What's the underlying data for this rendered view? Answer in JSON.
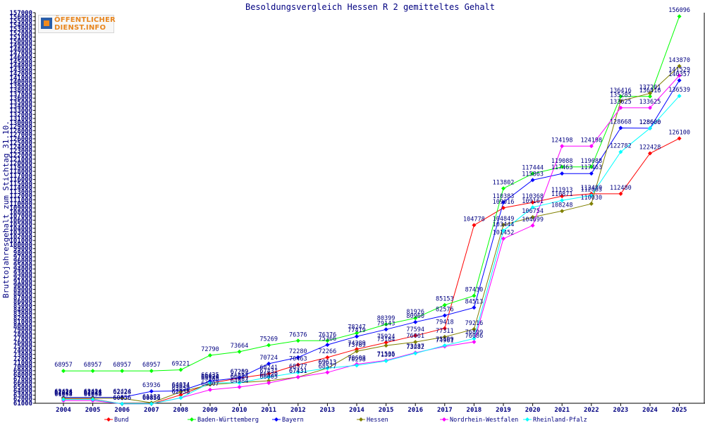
{
  "logo": {
    "line1": "ÖFFENTLICHER",
    "line2": "DIENST.INFO"
  },
  "chart_data": {
    "type": "line",
    "title": "Besoldungsvergleich Hessen R 2 gemitteltes Gehalt",
    "xlabel": "",
    "ylabel": "Bruttojahresgehalt zum Stichtag 31.10.",
    "ylim": [
      61000,
      157000
    ],
    "ytick_step": 1000,
    "grid": false,
    "legend_position": "bottom",
    "categories": [
      "2004",
      "2005",
      "2006",
      "2007",
      "2008",
      "2009",
      "2010",
      "2011",
      "2012",
      "2013",
      "2014",
      "2015",
      "2016",
      "2017",
      "2018",
      "2019",
      "2020",
      "2021",
      "2022",
      "2023",
      "2024",
      "2025"
    ],
    "series": [
      {
        "name": "Bund",
        "color": "#ff0000",
        "values": [
          62023,
          62023,
          60856,
          60856,
          63058,
          65926,
          67202,
          68241,
          70463,
          72266,
          74289,
          75924,
          77594,
          79418,
          104778,
          109016,
          110368,
          111913,
          112480,
          112480,
          122428,
          126100
        ]
      },
      {
        "name": "Baden-Württemberg",
        "color": "#00ff00",
        "values": [
          68957,
          68957,
          68957,
          68957,
          69221,
          72790,
          73664,
          75269,
          76376,
          76376,
          78247,
          80399,
          81926,
          85153,
          87430,
          113802,
          117444,
          119088,
          119088,
          136416,
          136416,
          156096
        ]
      },
      {
        "name": "Bayern",
        "color": "#0000ff",
        "values": [
          62424,
          62424,
          62424,
          63936,
          64034,
          66435,
          67259,
          70724,
          72280,
          75366,
          77419,
          79143,
          80960,
          82576,
          84513,
          110383,
          115863,
          117463,
          117463,
          128668,
          128600,
          140357
        ]
      },
      {
        "name": "Hessen",
        "color": "#808000",
        "values": [
          62228,
          62228,
          62228,
          61123,
          63814,
          65588,
          66084,
          66529,
          67431,
          69613,
          73789,
          75184,
          76061,
          77311,
          79216,
          104849,
          106754,
          108248,
          110030,
          135285,
          137201,
          143870
        ]
      },
      {
        "name": "Nordrhein-Westfalen",
        "color": "#ff00ff",
        "values": [
          61658,
          61658,
          60856,
          60856,
          62338,
          64307,
          64984,
          66005,
          67431,
          68577,
          70608,
          71535,
          73437,
          74961,
          76086,
          101452,
          104699,
          124198,
          124198,
          133625,
          133625,
          141529
        ]
      },
      {
        "name": "Rheinland-Pfalz",
        "color": "#00ffff",
        "values": [
          61941,
          61941,
          60856,
          60856,
          62338,
          66024,
          66024,
          67431,
          68577,
          69613,
          70298,
          71390,
          73282,
          75199,
          76899,
          103444,
          109161,
          110871,
          112063,
          122782,
          128600,
          136539
        ]
      }
    ]
  }
}
